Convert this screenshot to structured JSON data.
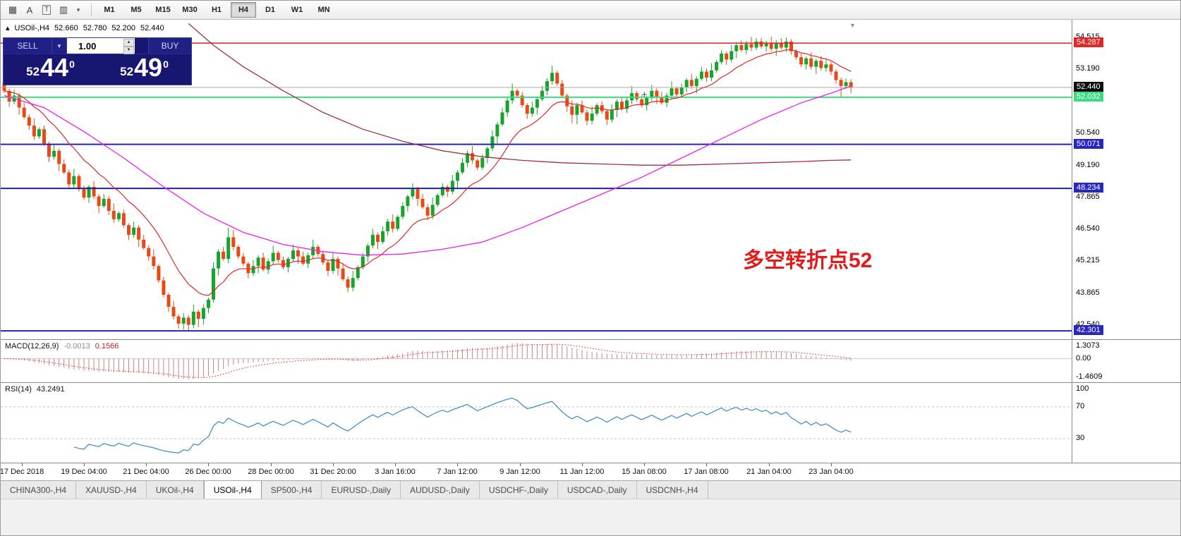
{
  "toolbar": {
    "icons": [
      {
        "name": "grid-templates-icon",
        "glyph": "▦"
      },
      {
        "name": "text-label-icon",
        "glyph": "A"
      },
      {
        "name": "text-tool-icon",
        "glyph": "T"
      },
      {
        "name": "chart-objects-icon",
        "glyph": "▥"
      },
      {
        "name": "dropdown-chevron-icon",
        "glyph": "▾"
      }
    ],
    "timeframes": [
      "M1",
      "M5",
      "M15",
      "M30",
      "H1",
      "H4",
      "D1",
      "W1",
      "MN"
    ],
    "active_timeframe": "H4"
  },
  "chart": {
    "header": {
      "marker": "▴",
      "symbol": "USOil-,H4",
      "open": "52.660",
      "high": "52.780",
      "low": "52.200",
      "close": "52.440"
    },
    "annotation": {
      "text": "多空转折点52",
      "color": "#e11b1b"
    },
    "shift_marker": "▼",
    "cross_cursor": "+",
    "axis_ticks": [
      "54.515",
      "53.190",
      "50.540",
      "49.190",
      "47.865",
      "46.540",
      "45.215",
      "43.865",
      "42.540"
    ],
    "hlines": [
      {
        "price": 54.287,
        "label": "54.287",
        "color": "#d02020",
        "badge": "#e02828",
        "lw": 1.5
      },
      {
        "price": 52.44,
        "label": "52.440",
        "color": "#aaaaaa",
        "badge": "#0c0c0c",
        "lw": 1
      },
      {
        "price": 52.032,
        "label": "52.032",
        "color": "#3ddb82",
        "badge": "#3ddb82",
        "lw": 2
      },
      {
        "price": 50.071,
        "label": "50.071",
        "color": "#2424b4",
        "badge": "#2828c0",
        "lw": 2
      },
      {
        "price": 48.234,
        "label": "48.234",
        "color": "#20209a",
        "badge": "#2828c0",
        "lw": 2
      },
      {
        "price": 42.301,
        "label": "42.301",
        "color": "#2424b4",
        "badge": "#2828c0",
        "lw": 2
      }
    ]
  },
  "trade_panel": {
    "sell_label": "SELL",
    "buy_label": "BUY",
    "volume": "1.00",
    "caret_down": "▼",
    "step_up": "▲",
    "step_down": "▼",
    "sell_price": {
      "base": "52",
      "big": "44",
      "sup": "0"
    },
    "buy_price": {
      "base": "52",
      "big": "49",
      "sup": "0"
    }
  },
  "macd": {
    "title": "MACD(12,26,9)",
    "value_main": "-0.0013",
    "value_signal": "0.1566",
    "scale_top": "1.3073",
    "scale_zero": "0.00",
    "scale_bottom": "-1.4609"
  },
  "rsi": {
    "title": "RSI(14)",
    "value": "43.2491",
    "scale_top": "100",
    "levels": [
      {
        "v": 70,
        "label": "70"
      },
      {
        "v": 30,
        "label": "30"
      }
    ]
  },
  "time_axis": [
    {
      "label": "17 Dec 2018",
      "bar": 3.5
    },
    {
      "label": "19 Dec 04:00",
      "bar": 16
    },
    {
      "label": "21 Dec 04:00",
      "bar": 28.5
    },
    {
      "label": "26 Dec 00:00",
      "bar": 41
    },
    {
      "label": "28 Dec 00:00",
      "bar": 53.5
    },
    {
      "label": "31 Dec 20:00",
      "bar": 66
    },
    {
      "label": "3 Jan 16:00",
      "bar": 78.5
    },
    {
      "label": "7 Jan 12:00",
      "bar": 91
    },
    {
      "label": "9 Jan 12:00",
      "bar": 103.5
    },
    {
      "label": "11 Jan 12:00",
      "bar": 116
    },
    {
      "label": "15 Jan 08:00",
      "bar": 128.5
    },
    {
      "label": "17 Jan 08:00",
      "bar": 141
    },
    {
      "label": "21 Jan 04:00",
      "bar": 153.5
    },
    {
      "label": "23 Jan 04:00",
      "bar": 166
    }
  ],
  "tabs": {
    "items": [
      "CHINA300-,H4",
      "XAUUSD-,H4",
      "UKOil-,H4",
      "USOil-,H4",
      "SP500-,H4",
      "EURUSD-,Daily",
      "AUDUSD-,Daily",
      "USDCHF-,Daily",
      "USDCAD-,Daily",
      "USDCNH-,H4"
    ],
    "active": "USOil-,H4"
  },
  "chart_data": {
    "type": "candlestick",
    "symbol": "USOil-",
    "timeframe": "H4",
    "latest_ohlc": {
      "open": 52.66,
      "high": 52.78,
      "low": 52.2,
      "close": 52.44
    },
    "price_range": {
      "min": 41.95,
      "max": 55.26
    },
    "indicators": {
      "macd": "MACD(12,26,9)",
      "rsi": "RSI(14)",
      "rsi_value": 43.2491,
      "macd_values": [
        -0.0013,
        0.1566
      ]
    },
    "colors": {
      "up": "#17a42c",
      "down": "#e84a17",
      "ma_fast": "#e02828",
      "ma_mid": "#ee1eee",
      "ma_slow": "#a03040",
      "macd_hist": "#cc8484",
      "macd_signal": "#e02020",
      "rsi": "#3a87c8"
    },
    "ma_mid_points": [
      [
        0,
        52.1
      ],
      [
        8,
        51.6
      ],
      [
        16,
        50.6
      ],
      [
        24,
        49.5
      ],
      [
        32,
        48.3
      ],
      [
        40,
        47.2
      ],
      [
        48,
        46.4
      ],
      [
        56,
        45.9
      ],
      [
        64,
        45.6
      ],
      [
        72,
        45.45
      ],
      [
        80,
        45.5
      ],
      [
        88,
        45.7
      ],
      [
        96,
        46.0
      ],
      [
        104,
        46.6
      ],
      [
        112,
        47.3
      ],
      [
        120,
        48.0
      ],
      [
        128,
        48.7
      ],
      [
        136,
        49.5
      ],
      [
        144,
        50.3
      ],
      [
        152,
        51.1
      ],
      [
        160,
        51.8
      ],
      [
        166,
        52.2
      ],
      [
        170,
        52.5
      ]
    ],
    "ma_slow_points": [
      [
        37,
        55.1
      ],
      [
        42,
        54.2
      ],
      [
        48,
        53.3
      ],
      [
        56,
        52.3
      ],
      [
        64,
        51.4
      ],
      [
        72,
        50.7
      ],
      [
        80,
        50.2
      ],
      [
        88,
        49.8
      ],
      [
        96,
        49.55
      ],
      [
        104,
        49.4
      ],
      [
        112,
        49.3
      ],
      [
        120,
        49.25
      ],
      [
        128,
        49.2
      ],
      [
        136,
        49.2
      ],
      [
        144,
        49.25
      ],
      [
        152,
        49.3
      ],
      [
        160,
        49.35
      ],
      [
        166,
        49.4
      ],
      [
        170,
        49.42
      ]
    ],
    "candles": [
      [
        52.66,
        52.81,
        52.2,
        52.3
      ],
      [
        52.3,
        52.38,
        51.63,
        51.85
      ],
      [
        51.85,
        52.35,
        51.73,
        52.1
      ],
      [
        52.1,
        52.2,
        51.3,
        51.6
      ],
      [
        51.6,
        51.8,
        51.12,
        51.2
      ],
      [
        51.2,
        51.32,
        50.67,
        50.85
      ],
      [
        50.85,
        51.15,
        50.25,
        50.4
      ],
      [
        50.4,
        50.78,
        50.3,
        50.7
      ],
      [
        50.7,
        50.85,
        50.0,
        50.1
      ],
      [
        50.1,
        50.18,
        49.33,
        49.55
      ],
      [
        49.55,
        50.05,
        49.43,
        49.8
      ],
      [
        49.8,
        49.9,
        48.95,
        49.25
      ],
      [
        49.25,
        49.45,
        48.82,
        48.9
      ],
      [
        48.9,
        49.02,
        48.22,
        48.4
      ],
      [
        48.4,
        49.05,
        48.25,
        48.75
      ],
      [
        48.75,
        48.83,
        48.1,
        48.2
      ],
      [
        48.2,
        48.35,
        47.75,
        47.85
      ],
      [
        47.85,
        48.38,
        47.63,
        48.3
      ],
      [
        48.3,
        48.55,
        47.78,
        47.9
      ],
      [
        47.9,
        48.0,
        47.2,
        47.5
      ],
      [
        47.5,
        48.0,
        47.42,
        47.8
      ],
      [
        47.8,
        47.92,
        47.12,
        47.3
      ],
      [
        47.3,
        47.6,
        46.8,
        46.95
      ],
      [
        46.95,
        47.28,
        46.85,
        47.2
      ],
      [
        47.2,
        47.35,
        46.6,
        46.7
      ],
      [
        46.7,
        46.78,
        46.08,
        46.3
      ],
      [
        46.3,
        46.85,
        46.18,
        46.6
      ],
      [
        46.6,
        46.7,
        45.8,
        46.1
      ],
      [
        46.1,
        46.3,
        45.67,
        45.75
      ],
      [
        45.75,
        45.87,
        45.22,
        45.4
      ],
      [
        45.4,
        45.7,
        44.85,
        45.0
      ],
      [
        45.0,
        45.08,
        44.3,
        44.4
      ],
      [
        44.4,
        44.55,
        43.7,
        43.8
      ],
      [
        43.8,
        43.88,
        43.08,
        43.3
      ],
      [
        43.3,
        43.55,
        42.78,
        42.9
      ],
      [
        42.9,
        43.0,
        42.4,
        42.6
      ],
      [
        42.6,
        43.05,
        42.35,
        42.85
      ],
      [
        42.85,
        42.95,
        42.3,
        42.55
      ],
      [
        42.55,
        43.4,
        42.4,
        43.1
      ],
      [
        43.1,
        43.18,
        42.45,
        42.8
      ],
      [
        42.8,
        43.4,
        42.55,
        43.25
      ],
      [
        43.25,
        43.68,
        43.03,
        43.6
      ],
      [
        43.6,
        45.15,
        43.48,
        44.9
      ],
      [
        44.9,
        45.7,
        44.6,
        45.6
      ],
      [
        45.6,
        45.8,
        45.22,
        45.3
      ],
      [
        45.3,
        46.6,
        45.12,
        46.2
      ],
      [
        46.2,
        46.5,
        45.65,
        45.8
      ],
      [
        45.8,
        45.88,
        45.3,
        45.4
      ],
      [
        45.4,
        45.55,
        45.0,
        45.1
      ],
      [
        45.1,
        45.18,
        44.48,
        44.7
      ],
      [
        44.7,
        45.25,
        44.58,
        45.0
      ],
      [
        45.0,
        45.45,
        44.7,
        45.35
      ],
      [
        45.35,
        45.55,
        44.77,
        44.85
      ],
      [
        44.85,
        45.32,
        44.67,
        45.2
      ],
      [
        45.2,
        45.85,
        45.05,
        45.55
      ],
      [
        45.55,
        45.63,
        45.15,
        45.25
      ],
      [
        45.25,
        45.4,
        44.85,
        44.95
      ],
      [
        44.95,
        45.38,
        44.73,
        45.3
      ],
      [
        45.3,
        45.9,
        45.18,
        45.65
      ],
      [
        45.65,
        45.75,
        45.1,
        45.4
      ],
      [
        45.4,
        45.6,
        45.02,
        45.1
      ],
      [
        45.1,
        45.57,
        44.92,
        45.45
      ],
      [
        45.45,
        46.1,
        45.3,
        45.8
      ],
      [
        45.8,
        45.88,
        45.4,
        45.5
      ],
      [
        45.5,
        45.65,
        45.05,
        45.15
      ],
      [
        45.15,
        45.23,
        44.58,
        44.8
      ],
      [
        44.8,
        45.55,
        44.68,
        45.3
      ],
      [
        45.3,
        45.4,
        44.6,
        44.9
      ],
      [
        44.9,
        45.1,
        44.37,
        44.45
      ],
      [
        44.45,
        44.57,
        43.92,
        44.1
      ],
      [
        44.1,
        44.8,
        43.95,
        44.5
      ],
      [
        44.5,
        45.03,
        44.4,
        44.95
      ],
      [
        44.95,
        45.55,
        44.85,
        45.4
      ],
      [
        45.4,
        45.93,
        45.18,
        45.85
      ],
      [
        45.85,
        46.55,
        45.73,
        46.3
      ],
      [
        46.3,
        46.4,
        45.7,
        46.0
      ],
      [
        46.0,
        46.65,
        45.92,
        46.45
      ],
      [
        46.45,
        46.97,
        46.27,
        46.85
      ],
      [
        46.85,
        47.15,
        46.4,
        46.55
      ],
      [
        46.55,
        47.13,
        46.45,
        47.05
      ],
      [
        47.05,
        47.65,
        46.95,
        47.5
      ],
      [
        47.5,
        47.98,
        47.28,
        47.9
      ],
      [
        47.9,
        48.45,
        47.78,
        48.2
      ],
      [
        48.2,
        48.3,
        47.5,
        47.8
      ],
      [
        47.8,
        48.0,
        47.37,
        47.45
      ],
      [
        47.45,
        47.57,
        46.92,
        47.1
      ],
      [
        47.1,
        47.85,
        46.95,
        47.55
      ],
      [
        47.55,
        48.03,
        47.45,
        47.95
      ],
      [
        47.95,
        48.45,
        47.85,
        48.3
      ],
      [
        48.3,
        48.38,
        47.88,
        48.1
      ],
      [
        48.1,
        48.8,
        47.98,
        48.55
      ],
      [
        48.55,
        49.0,
        48.25,
        48.9
      ],
      [
        48.9,
        49.5,
        48.82,
        49.3
      ],
      [
        49.3,
        49.82,
        49.12,
        49.7
      ],
      [
        49.7,
        50.0,
        49.25,
        49.4
      ],
      [
        49.4,
        49.48,
        49.0,
        49.1
      ],
      [
        49.1,
        49.65,
        49.0,
        49.5
      ],
      [
        49.5,
        49.98,
        49.28,
        49.9
      ],
      [
        49.9,
        50.65,
        49.78,
        50.4
      ],
      [
        50.4,
        51.0,
        50.1,
        50.9
      ],
      [
        50.9,
        51.6,
        50.82,
        51.4
      ],
      [
        51.4,
        52.02,
        51.22,
        51.9
      ],
      [
        51.9,
        52.6,
        51.75,
        52.3
      ],
      [
        52.3,
        52.38,
        52.0,
        52.1
      ],
      [
        52.1,
        52.25,
        51.6,
        51.7
      ],
      [
        51.7,
        51.78,
        51.13,
        51.35
      ],
      [
        51.35,
        51.85,
        51.23,
        51.6
      ],
      [
        51.6,
        52.05,
        51.3,
        51.95
      ],
      [
        51.95,
        52.5,
        51.87,
        52.3
      ],
      [
        52.3,
        52.82,
        52.12,
        52.7
      ],
      [
        52.7,
        53.35,
        52.55,
        53.05
      ],
      [
        53.05,
        53.13,
        52.5,
        52.6
      ],
      [
        52.6,
        52.75,
        52.0,
        52.1
      ],
      [
        52.1,
        52.18,
        51.43,
        51.65
      ],
      [
        51.65,
        51.9,
        50.95,
        51.3
      ],
      [
        51.3,
        51.8,
        50.9,
        51.7
      ],
      [
        51.7,
        51.9,
        51.32,
        51.4
      ],
      [
        51.4,
        51.52,
        50.87,
        51.05
      ],
      [
        51.05,
        51.65,
        50.9,
        51.35
      ],
      [
        51.35,
        51.78,
        51.25,
        51.7
      ],
      [
        51.7,
        51.85,
        51.35,
        51.45
      ],
      [
        51.45,
        51.53,
        50.88,
        51.1
      ],
      [
        51.1,
        51.75,
        50.98,
        51.5
      ],
      [
        51.5,
        51.95,
        51.2,
        51.85
      ],
      [
        51.85,
        52.05,
        51.47,
        51.55
      ],
      [
        51.55,
        52.02,
        51.37,
        51.9
      ],
      [
        51.9,
        52.5,
        51.75,
        52.2
      ],
      [
        52.2,
        52.28,
        51.85,
        51.95
      ],
      [
        51.95,
        52.1,
        51.6,
        51.7
      ],
      [
        51.7,
        52.08,
        51.48,
        52.0
      ],
      [
        52.0,
        52.55,
        51.88,
        52.3
      ],
      [
        52.3,
        52.4,
        51.75,
        52.05
      ],
      [
        52.05,
        52.25,
        51.72,
        51.8
      ],
      [
        51.8,
        52.22,
        51.62,
        52.1
      ],
      [
        52.1,
        52.7,
        51.95,
        52.4
      ],
      [
        52.4,
        52.48,
        52.05,
        52.15
      ],
      [
        52.15,
        52.6,
        52.05,
        52.45
      ],
      [
        52.45,
        52.83,
        52.23,
        52.75
      ],
      [
        52.75,
        53.0,
        52.38,
        52.5
      ],
      [
        52.5,
        52.9,
        52.2,
        52.8
      ],
      [
        52.8,
        53.3,
        52.72,
        53.1
      ],
      [
        53.1,
        53.22,
        52.67,
        52.85
      ],
      [
        52.85,
        53.45,
        52.7,
        53.15
      ],
      [
        53.15,
        53.58,
        53.05,
        53.5
      ],
      [
        53.5,
        54.0,
        53.4,
        53.85
      ],
      [
        53.85,
        53.93,
        53.38,
        53.6
      ],
      [
        53.6,
        54.2,
        53.48,
        53.95
      ],
      [
        53.95,
        54.3,
        53.65,
        54.2
      ],
      [
        54.2,
        54.4,
        53.92,
        54.0
      ],
      [
        54.0,
        54.37,
        53.82,
        54.25
      ],
      [
        54.25,
        54.55,
        53.95,
        54.1
      ],
      [
        54.1,
        54.5,
        54.0,
        54.35
      ],
      [
        54.35,
        54.5,
        54.05,
        54.15
      ],
      [
        54.15,
        54.38,
        53.93,
        54.3
      ],
      [
        54.3,
        54.55,
        53.93,
        54.05
      ],
      [
        54.05,
        54.4,
        53.75,
        54.3
      ],
      [
        54.3,
        54.5,
        54.02,
        54.1
      ],
      [
        54.1,
        54.52,
        53.92,
        54.35
      ],
      [
        54.35,
        54.45,
        53.8,
        53.95
      ],
      [
        53.95,
        54.03,
        53.6,
        53.7
      ],
      [
        53.7,
        53.85,
        53.3,
        53.4
      ],
      [
        53.4,
        53.73,
        53.18,
        53.65
      ],
      [
        53.65,
        53.9,
        53.18,
        53.3
      ],
      [
        53.3,
        53.65,
        53.0,
        53.55
      ],
      [
        53.55,
        53.75,
        53.15,
        53.25
      ],
      [
        53.25,
        53.6,
        53.1,
        53.4
      ],
      [
        53.4,
        53.5,
        52.95,
        53.1
      ],
      [
        53.1,
        53.2,
        52.6,
        52.75
      ],
      [
        52.75,
        52.85,
        52.05,
        52.5
      ],
      [
        52.5,
        52.8,
        52.38,
        52.66
      ],
      [
        52.66,
        52.78,
        52.2,
        52.44
      ]
    ]
  }
}
